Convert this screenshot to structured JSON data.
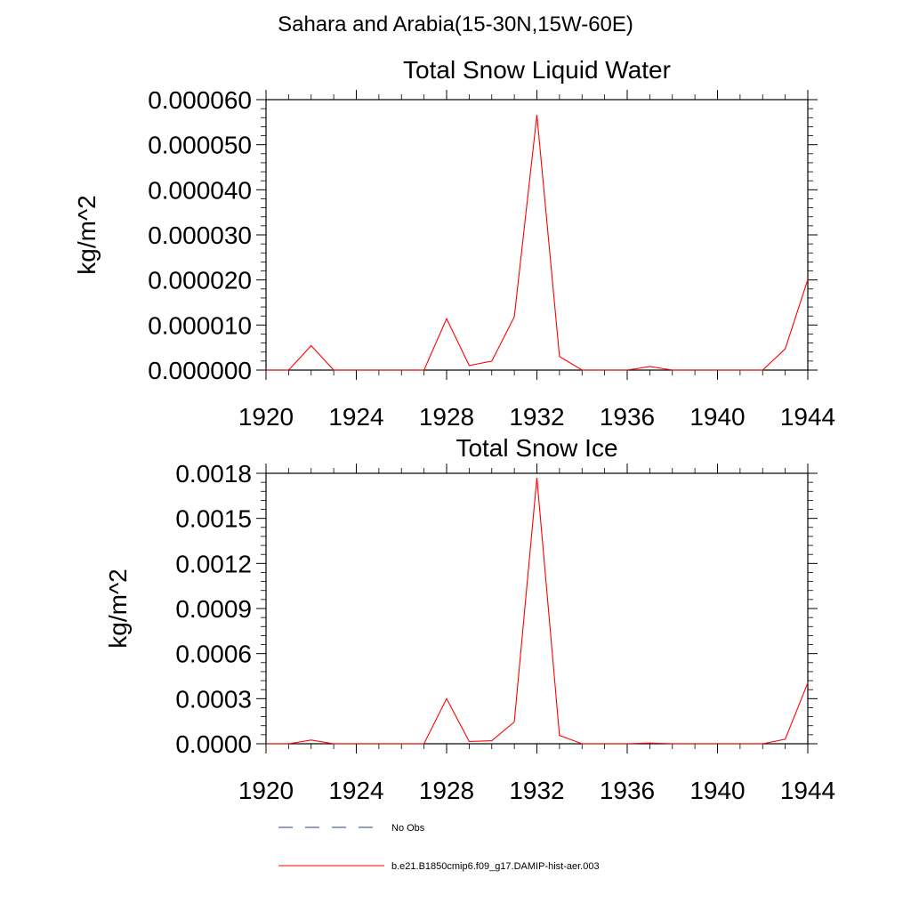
{
  "page": {
    "title": "Sahara and Arabia(15-30N,15W-60E)"
  },
  "legend": {
    "items": [
      {
        "label": "No Obs",
        "color": "#27408b",
        "dash": "dashed"
      },
      {
        "label": "b.e21.B1850cmip6.f09_g17.DAMIP-hist-aer.003",
        "color": "#ff0000",
        "dash": "solid"
      }
    ]
  },
  "chart_data": [
    {
      "type": "line",
      "title": "Total Snow Liquid Water",
      "xlabel": "",
      "ylabel": "kg/m^2",
      "xlim": [
        1920,
        1944
      ],
      "ylim": [
        0,
        6e-05
      ],
      "x_ticks": [
        1920,
        1924,
        1928,
        1932,
        1936,
        1940,
        1944
      ],
      "y_ticks": [
        0,
        1e-05,
        2e-05,
        3e-05,
        4e-05,
        5e-05,
        6e-05
      ],
      "y_tick_labels": [
        "0.000000",
        "0.000010",
        "0.000020",
        "0.000030",
        "0.000040",
        "0.000050",
        "0.000060"
      ],
      "x": [
        1920,
        1921,
        1922,
        1923,
        1924,
        1925,
        1926,
        1927,
        1928,
        1929,
        1930,
        1931,
        1932,
        1933,
        1934,
        1935,
        1936,
        1937,
        1938,
        1939,
        1940,
        1941,
        1942,
        1943,
        1944
      ],
      "series": [
        {
          "name": "b.e21.B1850cmip6.f09_g17.DAMIP-hist-aer.003",
          "color": "#ff0000",
          "values": [
            0,
            0,
            5.4e-06,
            0,
            0,
            0,
            0,
            0,
            1.14e-05,
            1e-06,
            2e-06,
            1.18e-05,
            5.66e-05,
            3e-06,
            0,
            0,
            0,
            8e-07,
            0,
            0,
            0,
            0,
            0,
            4.7e-06,
            2.01e-05
          ]
        }
      ]
    },
    {
      "type": "line",
      "title": "Total Snow Ice",
      "xlabel": "",
      "ylabel": "kg/m^2",
      "xlim": [
        1920,
        1944
      ],
      "ylim": [
        0,
        0.0018
      ],
      "x_ticks": [
        1920,
        1924,
        1928,
        1932,
        1936,
        1940,
        1944
      ],
      "y_ticks": [
        0,
        0.0003,
        0.0006,
        0.0009,
        0.0012,
        0.0015,
        0.0018
      ],
      "y_tick_labels": [
        "0.0000",
        "0.0003",
        "0.0006",
        "0.0009",
        "0.0012",
        "0.0015",
        "0.0018"
      ],
      "x": [
        1920,
        1921,
        1922,
        1923,
        1924,
        1925,
        1926,
        1927,
        1928,
        1929,
        1930,
        1931,
        1932,
        1933,
        1934,
        1935,
        1936,
        1937,
        1938,
        1939,
        1940,
        1941,
        1942,
        1943,
        1944
      ],
      "series": [
        {
          "name": "b.e21.B1850cmip6.f09_g17.DAMIP-hist-aer.003",
          "color": "#ff0000",
          "values": [
            0,
            0,
            2.5e-05,
            0,
            0,
            0,
            0,
            0,
            0.0003,
            1.5e-05,
            2e-05,
            0.000145,
            0.00177,
            5.5e-05,
            0,
            0,
            0,
            5e-06,
            0,
            0,
            0,
            0,
            0,
            3e-05,
            0.000405
          ]
        }
      ]
    }
  ]
}
